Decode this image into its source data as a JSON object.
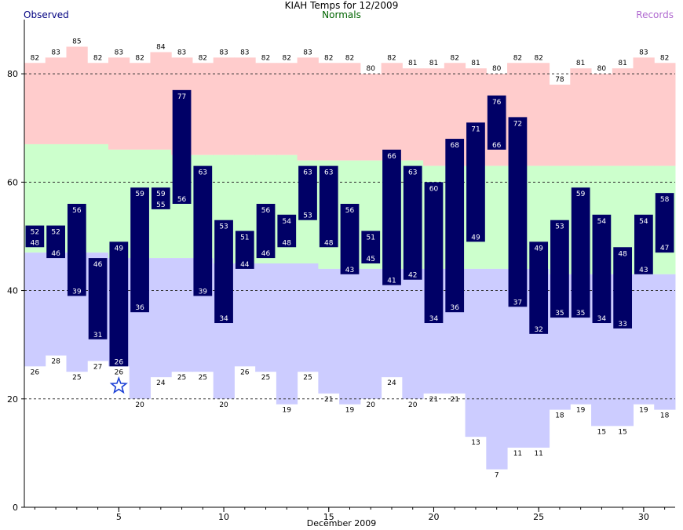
{
  "chart_data": {
    "type": "bar",
    "title": "KIAH Temps for 12/2009",
    "legend": {
      "observed": "Observed",
      "normals": "Normals",
      "records": "Records"
    },
    "xlabel": "December 2009",
    "ylabel": "",
    "xlim": [
      1,
      31
    ],
    "ylim": [
      0,
      90
    ],
    "x_ticks": [
      5,
      10,
      15,
      20,
      25,
      30
    ],
    "y_ticks": [
      0,
      20,
      40,
      60,
      80
    ],
    "grid": "horizontal dashed at 20, 40, 60, 80",
    "days": [
      1,
      2,
      3,
      4,
      5,
      6,
      7,
      8,
      9,
      10,
      11,
      12,
      13,
      14,
      15,
      16,
      17,
      18,
      19,
      20,
      21,
      22,
      23,
      24,
      25,
      26,
      27,
      28,
      29,
      30,
      31
    ],
    "observed_high": [
      52,
      52,
      56,
      46,
      49,
      59,
      59,
      77,
      63,
      53,
      51,
      56,
      54,
      63,
      63,
      56,
      51,
      66,
      63,
      60,
      68,
      71,
      76,
      72,
      49,
      53,
      59,
      54,
      48,
      54,
      58
    ],
    "observed_low": [
      48,
      46,
      39,
      31,
      26,
      36,
      55,
      56,
      39,
      34,
      44,
      46,
      48,
      53,
      48,
      43,
      45,
      41,
      42,
      34,
      36,
      49,
      66,
      37,
      32,
      35,
      35,
      34,
      33,
      43,
      47
    ],
    "normal_high": [
      67,
      67,
      67,
      67,
      66,
      66,
      66,
      65,
      65,
      65,
      65,
      65,
      65,
      64,
      64,
      64,
      64,
      64,
      64,
      63,
      63,
      63,
      63,
      63,
      63,
      63,
      63,
      63,
      63,
      63,
      63
    ],
    "normal_low": [
      47,
      47,
      47,
      47,
      46,
      46,
      46,
      46,
      46,
      45,
      45,
      45,
      45,
      45,
      44,
      44,
      44,
      44,
      44,
      44,
      44,
      44,
      44,
      44,
      44,
      43,
      43,
      43,
      43,
      43,
      43
    ],
    "record_high": [
      82,
      83,
      85,
      82,
      83,
      82,
      84,
      83,
      82,
      83,
      83,
      82,
      82,
      83,
      82,
      82,
      80,
      82,
      81,
      81,
      82,
      81,
      80,
      82,
      82,
      78,
      81,
      80,
      81,
      83,
      82
    ],
    "record_low": [
      26,
      28,
      25,
      27,
      26,
      20,
      24,
      25,
      25,
      20,
      26,
      25,
      19,
      25,
      21,
      19,
      20,
      24,
      20,
      21,
      21,
      13,
      7,
      11,
      11,
      18,
      19,
      15,
      15,
      19,
      18
    ],
    "record_low_tie_day": 5,
    "colors": {
      "observed": "#000066",
      "observed_label": "#ffffff",
      "record_high_band": "#ffcccc",
      "normal_band": "#ccffcc",
      "record_low_band": "#ccccff",
      "marker": "#1a3fd6",
      "grid": "#333333"
    }
  }
}
